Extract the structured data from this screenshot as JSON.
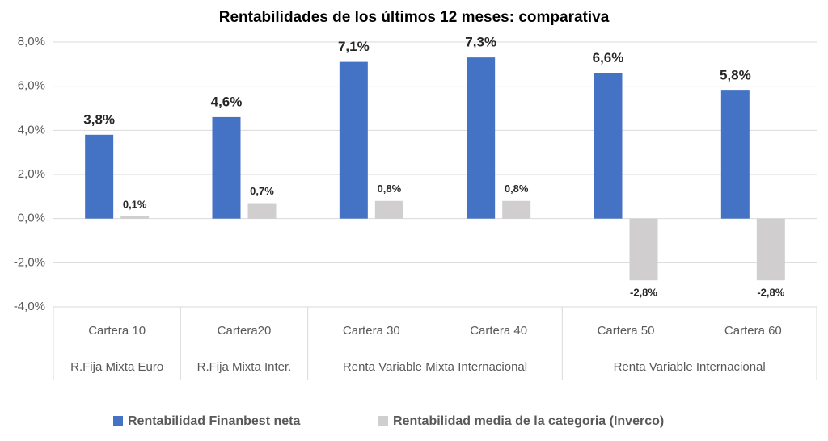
{
  "chart_data": {
    "type": "bar",
    "title": "Rentabilidades de los últimos 12 meses: comparativa",
    "categories": [
      "Cartera 10",
      "Cartera20",
      "Cartera 30",
      "Cartera 40",
      "Cartera 50",
      "Cartera 60"
    ],
    "groups": [
      {
        "label": "R.Fija Mixta Euro",
        "count": 1
      },
      {
        "label": "R.Fija Mixta Inter.",
        "count": 1
      },
      {
        "label": "Renta Variable Mixta Internacional",
        "count": 2
      },
      {
        "label": "Renta Variable Internacional",
        "count": 2
      }
    ],
    "series": [
      {
        "name": "Rentabilidad Finanbest neta",
        "color": "#4472c4",
        "values": [
          3.8,
          4.6,
          7.1,
          7.3,
          6.6,
          5.8
        ],
        "value_labels": [
          "3,8%",
          "4,6%",
          "7,1%",
          "7,3%",
          "6,6%",
          "5,8%"
        ]
      },
      {
        "name": "Rentabilidad media de la categoria (Inverco)",
        "color": "#d0cece",
        "values": [
          0.1,
          0.7,
          0.8,
          0.8,
          -2.8,
          -2.8
        ],
        "value_labels": [
          "0,1%",
          "0,7%",
          "0,8%",
          "0,8%",
          "-2,8%",
          "-2,8%"
        ]
      }
    ],
    "ylim": [
      -4,
      8
    ],
    "yticks": [
      {
        "value": -4,
        "label": "-4,0%"
      },
      {
        "value": -2,
        "label": "-2,0%"
      },
      {
        "value": 0,
        "label": "0,0%"
      },
      {
        "value": 2,
        "label": "2,0%"
      },
      {
        "value": 4,
        "label": "4,0%"
      },
      {
        "value": 6,
        "label": "6,0%"
      },
      {
        "value": 8,
        "label": "8,0%"
      }
    ],
    "grid": true
  }
}
